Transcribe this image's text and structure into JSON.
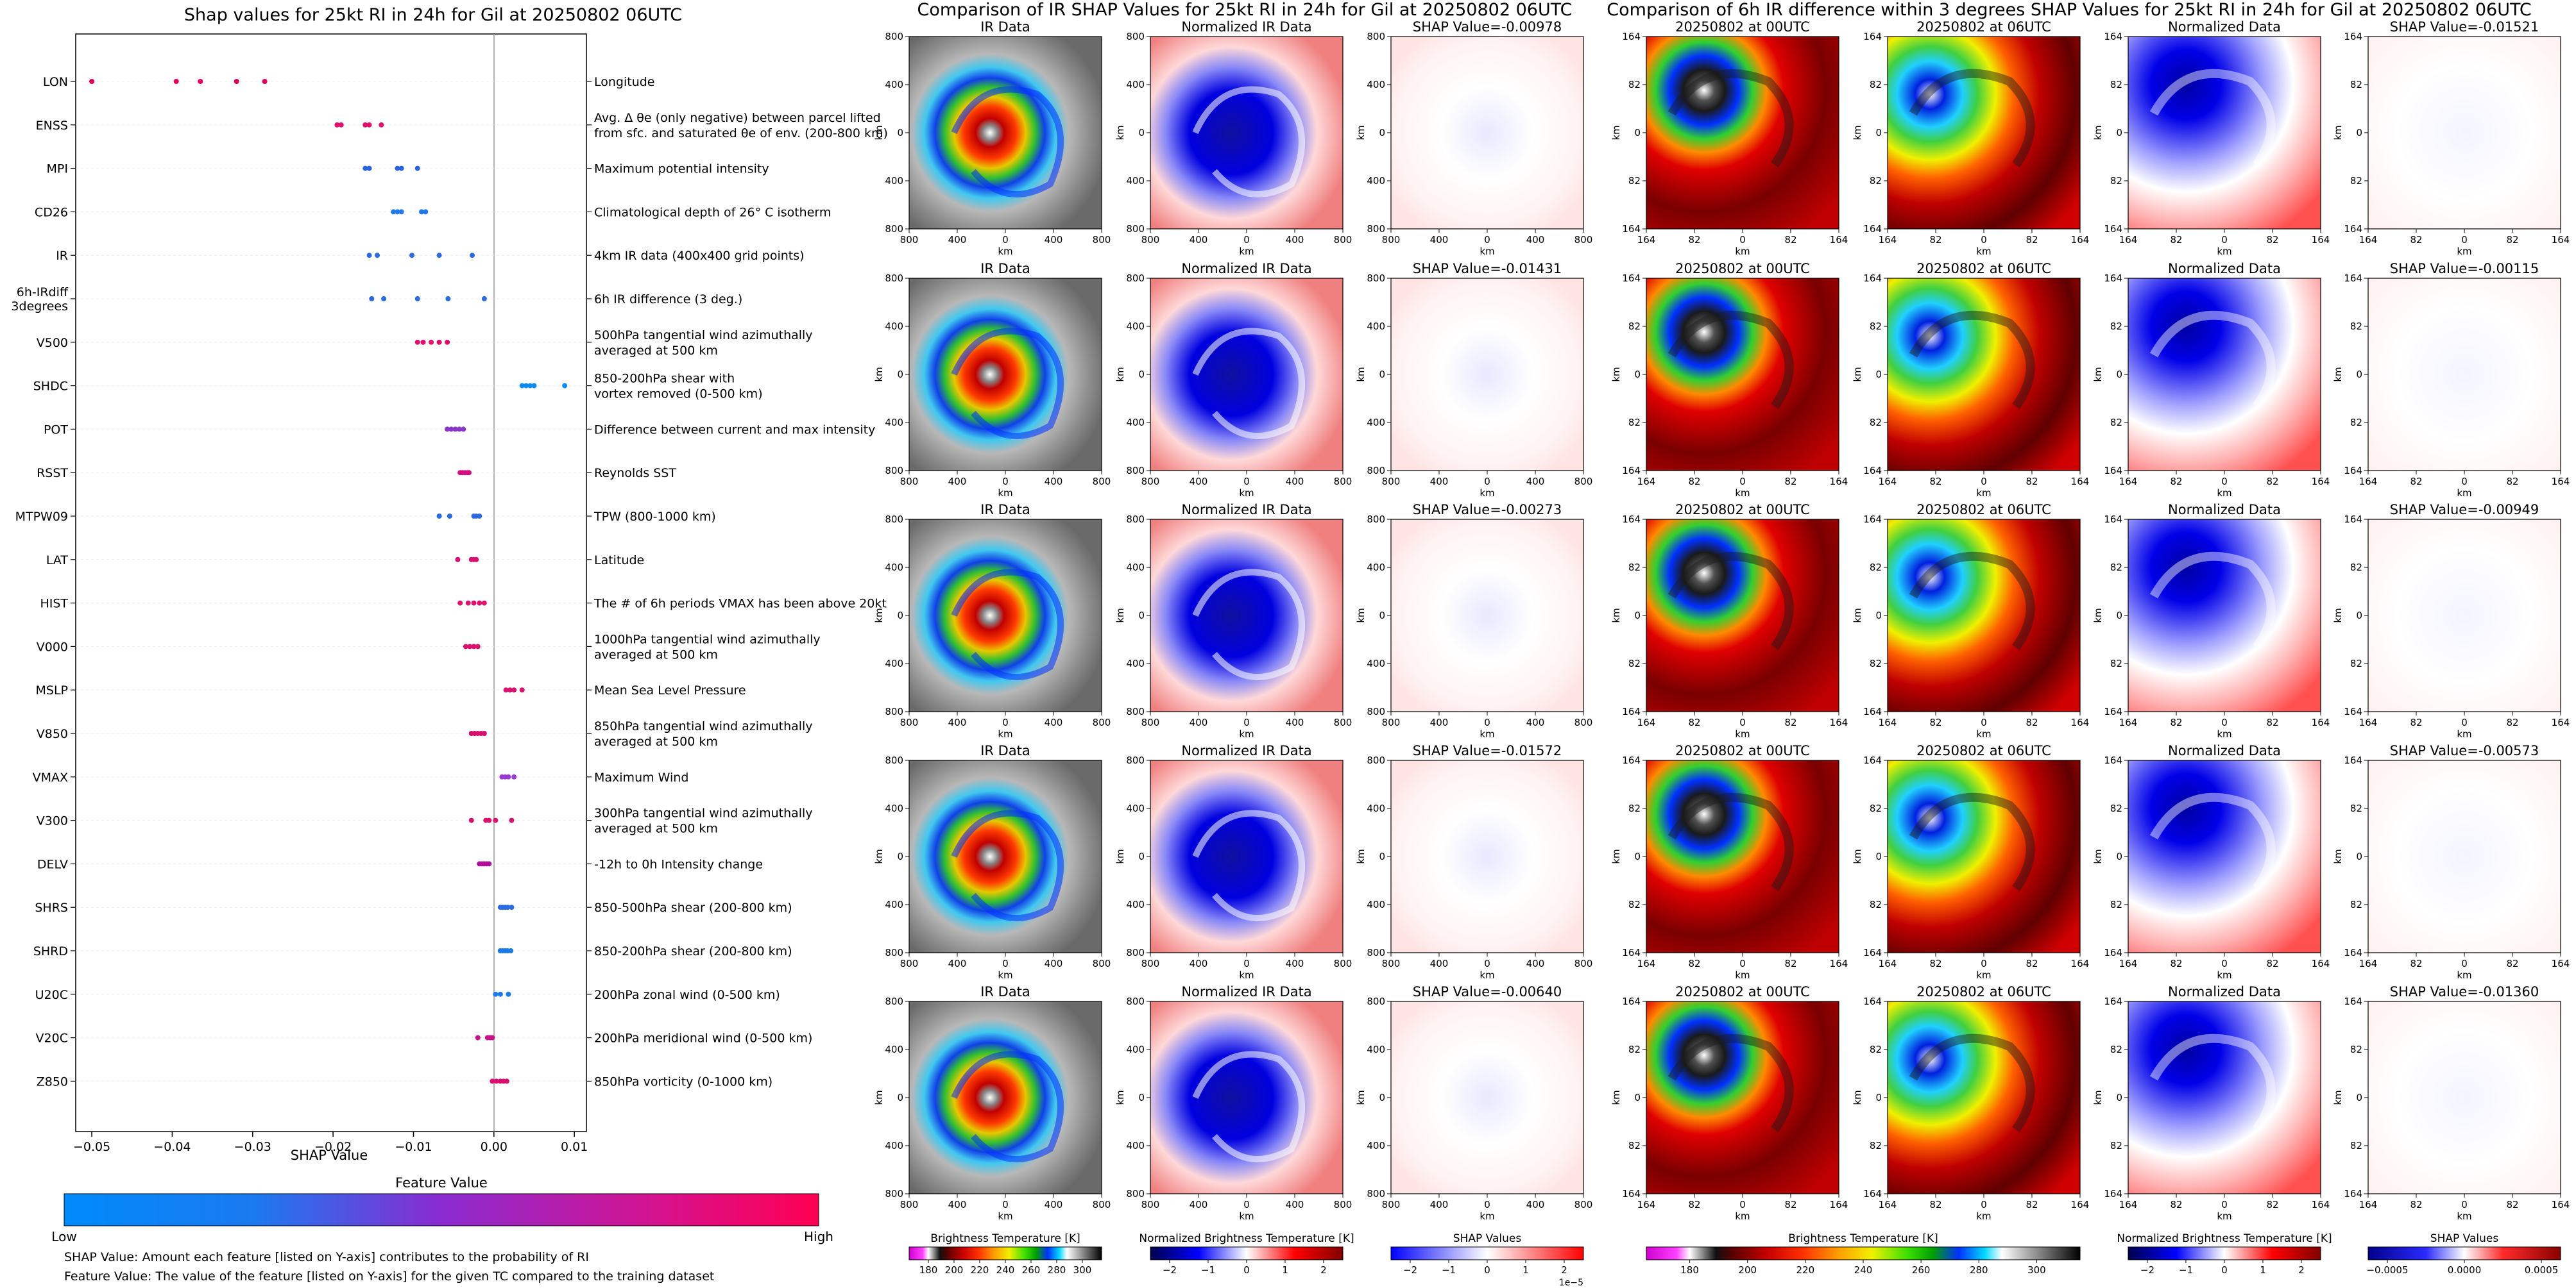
{
  "shap_panel": {
    "title": "Shap values for 25kt RI in 24h for Gil at 20250802 06UTC",
    "xlabel": "SHAP Value",
    "colorbar_title": "Feature Value",
    "colorbar_low": "Low",
    "colorbar_high": "High",
    "note_1": "SHAP Value: Amount each feature [listed on Y-axis] contributes to the probability of RI",
    "note_2": "Feature Value: The value of the feature [listed on Y-axis] for the given TC compared to the training dataset"
  },
  "ir_section": {
    "title": "Comparison of IR SHAP Values for 25kt RI in 24h for Gil at 20250802 06UTC",
    "panel_titles": [
      "IR Data",
      "Normalized IR Data"
    ],
    "shap_titles": [
      "SHAP Value=-0.00978",
      "SHAP Value=-0.01431",
      "SHAP Value=-0.00273",
      "SHAP Value=-0.01572",
      "SHAP Value=-0.00640"
    ],
    "axis_label": "km",
    "ticks": [
      "800",
      "400",
      "0",
      "400",
      "800"
    ],
    "colorbars": [
      {
        "label": "Brightness Temperature [K]",
        "ticks": [
          "180",
          "200",
          "220",
          "240",
          "260",
          "280",
          "300"
        ]
      },
      {
        "label": "Normalized Brightness Temperature [K]",
        "ticks": [
          "−2",
          "−1",
          "0",
          "1",
          "2"
        ]
      },
      {
        "label": "SHAP Values",
        "ticks": [
          "−2",
          "−1",
          "0",
          "1",
          "2"
        ],
        "exponent": "1e−5"
      }
    ]
  },
  "diff_section": {
    "title": "Comparison of 6h IR difference within 3 degrees SHAP Values for 25kt RI in 24h for Gil at 20250802 06UTC",
    "panel_titles": [
      "20250802 at 00UTC",
      "20250802 at 06UTC",
      "Normalized Data"
    ],
    "shap_titles": [
      "SHAP Value=-0.01521",
      "SHAP Value=-0.00115",
      "SHAP Value=-0.00949",
      "SHAP Value=-0.00573",
      "SHAP Value=-0.01360"
    ],
    "axis_label": "km",
    "ticks": [
      "164",
      "82",
      "0",
      "82",
      "164"
    ],
    "colorbars": [
      {
        "label": "Brightness Temperature [K]",
        "ticks": [
          "180",
          "200",
          "220",
          "240",
          "260",
          "280",
          "300"
        ]
      },
      {
        "label": "Normalized Brightness Temperature [K]",
        "ticks": [
          "−2",
          "−1",
          "0",
          "1",
          "2"
        ]
      },
      {
        "label": "SHAP Values",
        "ticks": [
          "−0.0005",
          "0.0000",
          "0.0005"
        ]
      }
    ]
  },
  "chart_data": {
    "type": "scatter",
    "title": "Shap values for 25kt RI in 24h for Gil at 20250802 06UTC",
    "xlabel": "SHAP Value",
    "xlim": [
      -0.052,
      0.0115
    ],
    "xticks": [
      "−0.05",
      "−0.04",
      "−0.03",
      "−0.02",
      "−0.01",
      "0.00",
      "0.01"
    ],
    "xtick_values": [
      -0.05,
      -0.04,
      -0.03,
      -0.02,
      -0.01,
      0.0,
      0.01
    ],
    "features": [
      {
        "name": "LON",
        "desc": "Longitude",
        "values": [
          -0.05,
          -0.0395,
          -0.0365,
          -0.032,
          -0.0285
        ],
        "color": "#e8005f"
      },
      {
        "name": "ENSS",
        "desc": [
          "Avg. Δ θe (only negative) between parcel lifted",
          "from sfc. and saturated θe of env. (200-800 km)"
        ],
        "values": [
          -0.0195,
          -0.019,
          -0.016,
          -0.0155,
          -0.014
        ],
        "color": "#e0106e"
      },
      {
        "name": "MPI",
        "desc": "Maximum potential intensity",
        "values": [
          -0.016,
          -0.0155,
          -0.012,
          -0.0115,
          -0.0095
        ],
        "color": "#2a62e0"
      },
      {
        "name": "CD26",
        "desc": "Climatological depth of 26° C isotherm",
        "values": [
          -0.0125,
          -0.012,
          -0.0115,
          -0.009,
          -0.0085
        ],
        "color": "#1f7ae8"
      },
      {
        "name": "IR",
        "desc": "4km IR data (400x400 grid points)",
        "values": [
          -0.0155,
          -0.0145,
          -0.0102,
          -0.0068,
          -0.0027
        ],
        "color": "#2a6ae2"
      },
      {
        "name": [
          "6h-IRdiff",
          "3degrees"
        ],
        "desc": "6h IR difference (3 deg.)",
        "values": [
          -0.0152,
          -0.0137,
          -0.0095,
          -0.0057,
          -0.0012
        ],
        "color": "#2a6ae2"
      },
      {
        "name": "V500",
        "desc": [
          "500hPa tangential wind azimuthally",
          "averaged at 500 km"
        ],
        "values": [
          -0.0095,
          -0.0088,
          -0.0078,
          -0.0068,
          -0.0058
        ],
        "color": "#e0106e"
      },
      {
        "name": "SHDC",
        "desc": [
          "850-200hPa shear with",
          "vortex removed (0-500 km)"
        ],
        "values": [
          0.0035,
          0.004,
          0.0045,
          0.005,
          0.0088
        ],
        "color": "#0c8cf2"
      },
      {
        "name": "POT",
        "desc": "Difference between current and max intensity",
        "values": [
          -0.0058,
          -0.0053,
          -0.0048,
          -0.0043,
          -0.0038
        ],
        "color": "#8a36c6"
      },
      {
        "name": "RSST",
        "desc": "Reynolds SST",
        "values": [
          -0.0042,
          -0.0039,
          -0.0036,
          -0.0033,
          -0.0031
        ],
        "color": "#d01080"
      },
      {
        "name": "MTPW09",
        "desc": "TPW (800-1000 km)",
        "values": [
          -0.0068,
          -0.0055,
          -0.0025,
          -0.0022,
          -0.0018
        ],
        "color": "#2a6ae2"
      },
      {
        "name": "LAT",
        "desc": "Latitude",
        "values": [
          -0.0045,
          -0.0028,
          -0.0025,
          -0.0022
        ],
        "color": "#d8106e"
      },
      {
        "name": "HIST",
        "desc": "The # of 6h periods VMAX has been above 20kt",
        "values": [
          -0.0042,
          -0.0032,
          -0.0025,
          -0.0018,
          -0.0012
        ],
        "color": "#e0106e"
      },
      {
        "name": "V000",
        "desc": [
          "1000hPa tangential wind azimuthally",
          "averaged at 500 km"
        ],
        "values": [
          -0.0035,
          -0.003,
          -0.0025,
          -0.002
        ],
        "color": "#d8106e"
      },
      {
        "name": "MSLP",
        "desc": "Mean Sea Level Pressure",
        "values": [
          0.0015,
          0.002,
          0.0025,
          0.0035
        ],
        "color": "#d8106e"
      },
      {
        "name": "V850",
        "desc": [
          "850hPa tangential wind azimuthally",
          "averaged at 500 km"
        ],
        "values": [
          -0.0028,
          -0.0024,
          -0.002,
          -0.0016,
          -0.0012
        ],
        "color": "#d8106e"
      },
      {
        "name": "VMAX",
        "desc": "Maximum Wind",
        "values": [
          0.001,
          0.0014,
          0.0018,
          0.0025
        ],
        "color": "#9a3ad0"
      },
      {
        "name": "V300",
        "desc": [
          "300hPa tangential wind azimuthally",
          "averaged at 500 km"
        ],
        "values": [
          -0.0028,
          -0.001,
          -0.0006,
          0.0002,
          0.0022
        ],
        "color": "#d8106e"
      },
      {
        "name": "DELV",
        "desc": "-12h to 0h Intensity change",
        "values": [
          -0.0018,
          -0.0015,
          -0.0012,
          -0.0009,
          -0.0006
        ],
        "color": "#b01098"
      },
      {
        "name": "SHRS",
        "desc": "850-500hPa shear (200-800 km)",
        "values": [
          0.0008,
          0.0011,
          0.0014,
          0.0017,
          0.0022
        ],
        "color": "#2a6ae2"
      },
      {
        "name": "SHRD",
        "desc": "850-200hPa shear (200-800 km)",
        "values": [
          0.0008,
          0.0011,
          0.0014,
          0.0017,
          0.0021
        ],
        "color": "#1a7ae8"
      },
      {
        "name": "U20C",
        "desc": "200hPa zonal wind (0-500 km)",
        "values": [
          0.0002,
          0.0008,
          0.0018
        ],
        "color": "#1a7ae8"
      },
      {
        "name": "V20C",
        "desc": "200hPa meridional wind (0-500 km)",
        "values": [
          -0.002,
          -0.0008,
          -0.0005,
          -0.0002
        ],
        "color": "#c8108a"
      },
      {
        "name": "Z850",
        "desc": "850hPa vorticity (0-1000 km)",
        "values": [
          -0.0002,
          0.0003,
          0.0008,
          0.0012,
          0.0016
        ],
        "color": "#d8106e"
      }
    ]
  }
}
